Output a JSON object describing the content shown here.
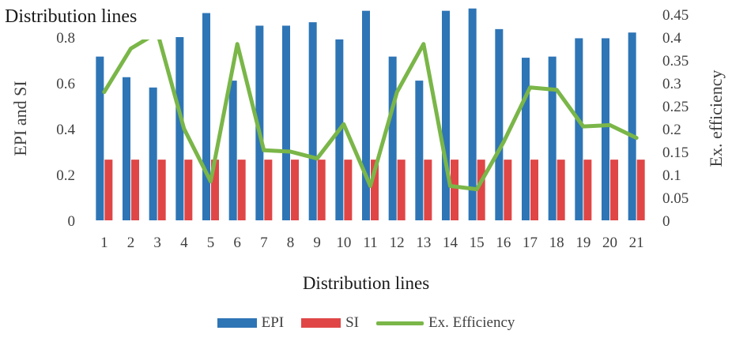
{
  "chart_data": {
    "type": "bar",
    "title": "Distribution lines",
    "xlabel": "Distribution lines",
    "ylabel": "EPI and SI",
    "y2label": "Ex. efficiency",
    "categories": [
      "1",
      "2",
      "3",
      "4",
      "5",
      "6",
      "7",
      "8",
      "9",
      "10",
      "11",
      "12",
      "13",
      "14",
      "15",
      "16",
      "17",
      "18",
      "19",
      "20",
      "21"
    ],
    "ylim": [
      0,
      0.9
    ],
    "y2lim": [
      0,
      0.45
    ],
    "yticks": [
      "0",
      "0.2",
      "0.4",
      "0.6",
      "0.8"
    ],
    "y2ticks": [
      "0",
      "0.05",
      "0.1",
      "0.15",
      "0.2",
      "0.25",
      "0.3",
      "0.35",
      "0.4",
      "0.45"
    ],
    "series": [
      {
        "name": "EPI",
        "type": "bar",
        "axis": "left",
        "color": "#2e75b6",
        "values": [
          0.715,
          0.625,
          0.58,
          0.8,
          0.905,
          0.61,
          0.85,
          0.85,
          0.865,
          0.79,
          0.915,
          0.715,
          0.61,
          0.915,
          0.925,
          0.835,
          0.71,
          0.715,
          0.795,
          0.795,
          0.82
        ]
      },
      {
        "name": "SI",
        "type": "bar",
        "axis": "left",
        "color": "#e04646",
        "values": [
          0.265,
          0.265,
          0.265,
          0.265,
          0.265,
          0.265,
          0.265,
          0.265,
          0.265,
          0.265,
          0.265,
          0.265,
          0.265,
          0.265,
          0.265,
          0.265,
          0.265,
          0.265,
          0.265,
          0.265,
          0.265
        ]
      },
      {
        "name": "Ex. Efficiency",
        "type": "line",
        "axis": "right",
        "color": "#7ab648",
        "values": [
          0.28,
          0.375,
          0.41,
          0.2,
          0.085,
          0.385,
          0.153,
          0.15,
          0.135,
          0.21,
          0.075,
          0.28,
          0.385,
          0.075,
          0.068,
          0.17,
          0.29,
          0.285,
          0.205,
          0.208,
          0.18
        ]
      }
    ],
    "grid": false,
    "legend": "bottom"
  }
}
